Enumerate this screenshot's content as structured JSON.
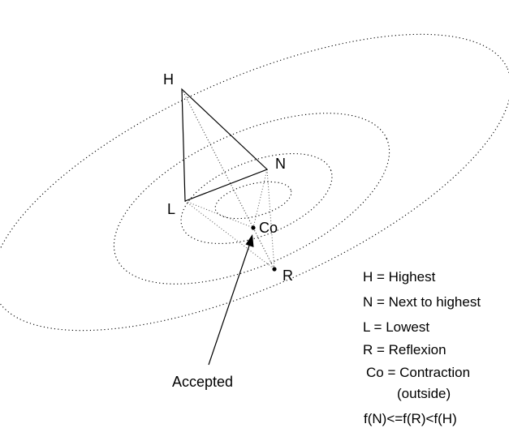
{
  "vertices": {
    "H": "H",
    "N": "N",
    "L": "L",
    "R": "R",
    "Co": "Co"
  },
  "arrow_label": "Accepted",
  "legend": [
    "H = Highest",
    "N = Next to highest",
    "L = Lowest",
    "R = Reflexion",
    "Co = Contraction",
    "(outside)",
    "f(N)<=f(R)<f(H)"
  ]
}
